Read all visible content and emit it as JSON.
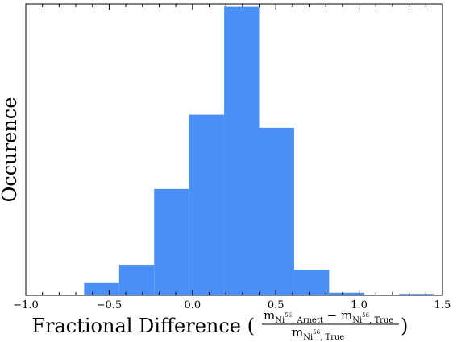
{
  "chart_data": {
    "type": "bar",
    "subtype": "histogram",
    "ylabel": "Occurence",
    "xlabel": {
      "prefix": "Fractional Difference (",
      "suffix": ")",
      "numerator": {
        "left": "m",
        "left_sub": "Ni",
        "left_sup": "56",
        "left_sub2": ", Arnett",
        "minus": " − ",
        "right": "m",
        "right_sub": "Ni",
        "right_sup": "56",
        "right_sub2": ", True"
      },
      "denominator": {
        "base": "m",
        "sub": "Ni",
        "sup": "56",
        "sub2": ", True"
      }
    },
    "xlim": [
      -1.0,
      1.5
    ],
    "ylim": [
      0,
      100
    ],
    "xticks": [
      {
        "value": -1.0,
        "label": "−1.0"
      },
      {
        "value": -0.5,
        "label": "−0.5"
      },
      {
        "value": 0.0,
        "label": "0.0"
      },
      {
        "value": 0.5,
        "label": "0.5"
      },
      {
        "value": 1.0,
        "label": "1.0"
      },
      {
        "value": 1.5,
        "label": "1.5"
      }
    ],
    "minor_tick_step": 0.1,
    "y_tick_labels": false,
    "color": "#4a8ff5",
    "bins": [
      {
        "x0": -0.65,
        "x1": -0.44,
        "value": 4.2
      },
      {
        "x0": -0.44,
        "x1": -0.23,
        "value": 10.5
      },
      {
        "x0": -0.23,
        "x1": -0.02,
        "value": 36.5
      },
      {
        "x0": -0.02,
        "x1": 0.19,
        "value": 62.0
      },
      {
        "x0": 0.19,
        "x1": 0.4,
        "value": 99.0
      },
      {
        "x0": 0.4,
        "x1": 0.61,
        "value": 57.5
      },
      {
        "x0": 0.61,
        "x1": 0.82,
        "value": 8.8
      },
      {
        "x0": 0.82,
        "x1": 1.03,
        "value": 0.9
      },
      {
        "x0": 1.24,
        "x1": 1.45,
        "value": 0.5
      }
    ]
  }
}
